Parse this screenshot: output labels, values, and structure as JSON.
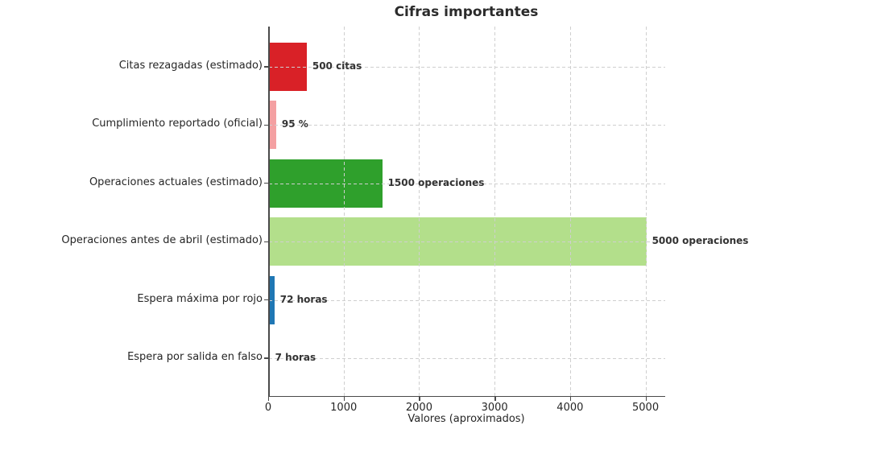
{
  "chart_data": {
    "type": "bar",
    "orientation": "horizontal",
    "title": "Cifras importantes",
    "xlabel": "Valores (aproximados)",
    "ylabel": "",
    "categories": [
      "Citas rezagadas (estimado)",
      "Cumplimiento reportado (oficial)",
      "Operaciones actuales (estimado)",
      "Operaciones antes de abril (estimado)",
      "Espera máxima por rojo",
      "Espera por salida en falso"
    ],
    "values": [
      500,
      95,
      1500,
      5000,
      72,
      7
    ],
    "value_labels": [
      "500 citas",
      "95 %",
      "1500 operaciones",
      "5000 operaciones",
      "72 horas",
      "7 horas"
    ],
    "bar_colors": [
      "#d92127",
      "#f4a0a2",
      "#2fa02c",
      "#b3df8b",
      "#1f77b4",
      "#1f77b4"
    ],
    "xticks": [
      0,
      1000,
      2000,
      3000,
      4000,
      5000
    ],
    "xtick_labels": [
      "0",
      "1000",
      "2000",
      "3000",
      "4000",
      "5000"
    ],
    "xlim": [
      0,
      5250
    ],
    "grid": "dashed-both-axes",
    "legend": "none"
  },
  "colors": {
    "background": "#ffffff",
    "grid": "#cfcfcf",
    "spine": "#4a4a4a",
    "text": "#262626",
    "title": "#2b2b2b"
  }
}
